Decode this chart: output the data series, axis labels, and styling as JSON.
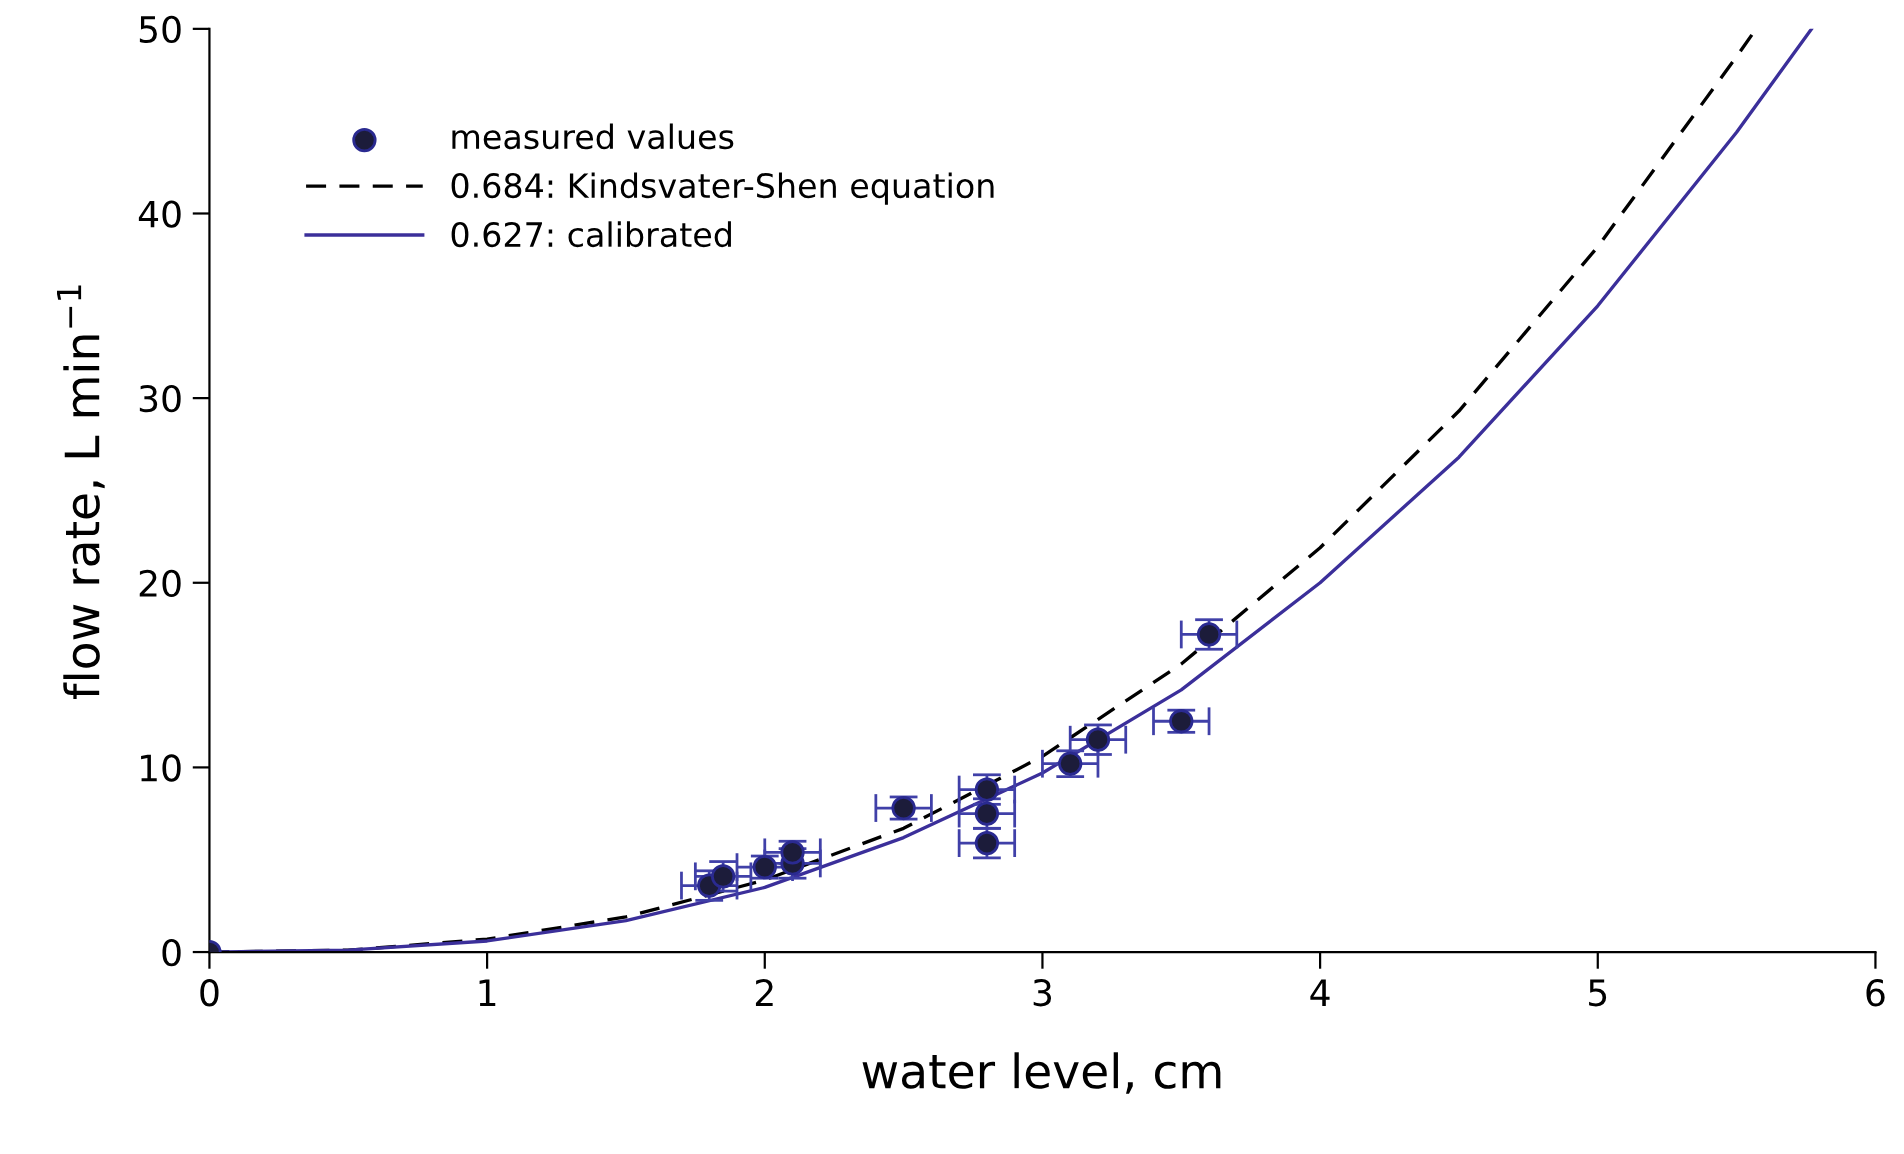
{
  "chart_data": {
    "type": "scatter",
    "xlabel": "water level, cm",
    "ylabel": "flow rate, L min$^{−1}$",
    "xlim": [
      0,
      6
    ],
    "ylim": [
      0,
      50
    ],
    "xticks": [
      0,
      1,
      2,
      3,
      4,
      5,
      6
    ],
    "yticks": [
      0,
      10,
      20,
      30,
      40,
      50
    ],
    "grid": false,
    "legend": "top left",
    "series": [
      {
        "name": "measured values",
        "marker": "circle",
        "color": "#1c1c3a",
        "x": [
          0,
          1.8,
          1.85,
          2.0,
          2.1,
          2.1,
          2.5,
          2.8,
          2.8,
          2.8,
          3.1,
          3.2,
          3.5,
          3.6
        ],
        "values": [
          0,
          3.6,
          4.1,
          4.6,
          4.8,
          5.4,
          7.8,
          8.8,
          7.5,
          5.9,
          10.2,
          11.5,
          12.5,
          17.2
        ],
        "errors": [
          null,
          0.8,
          0.8,
          0.6,
          0.8,
          0.6,
          0.6,
          0.8,
          0.8,
          0.8,
          0.7,
          0.8,
          0.6,
          0.8
        ],
        "xerrors": [
          null,
          0.1,
          0.1,
          0.1,
          0.1,
          0.1,
          0.1,
          0.1,
          0.1,
          0.1,
          0.1,
          0.1,
          0.1,
          0.1
        ]
      },
      {
        "name": "0.684: Kindsvater-Shen equation",
        "type": "line",
        "line_style": "dashed",
        "color": "#000000",
        "x": [
          0,
          0.5,
          1,
          1.5,
          2,
          2.5,
          3,
          3.5,
          4,
          4.5,
          5,
          5.5,
          5.57
        ],
        "values": [
          0,
          0.1,
          0.7,
          1.9,
          3.9,
          6.7,
          10.6,
          15.6,
          21.9,
          29.3,
          38.2,
          48.5,
          50
        ]
      },
      {
        "name": "0.627: calibrated",
        "type": "line",
        "line_style": "solid",
        "color": "#3b2f9a",
        "x": [
          0,
          0.5,
          1,
          1.5,
          2,
          2.5,
          3,
          3.5,
          4,
          4.5,
          5,
          5.5,
          5.77
        ],
        "values": [
          0,
          0.1,
          0.6,
          1.7,
          3.5,
          6.2,
          9.7,
          14.2,
          20.0,
          26.8,
          35.0,
          44.4,
          50
        ]
      }
    ]
  }
}
